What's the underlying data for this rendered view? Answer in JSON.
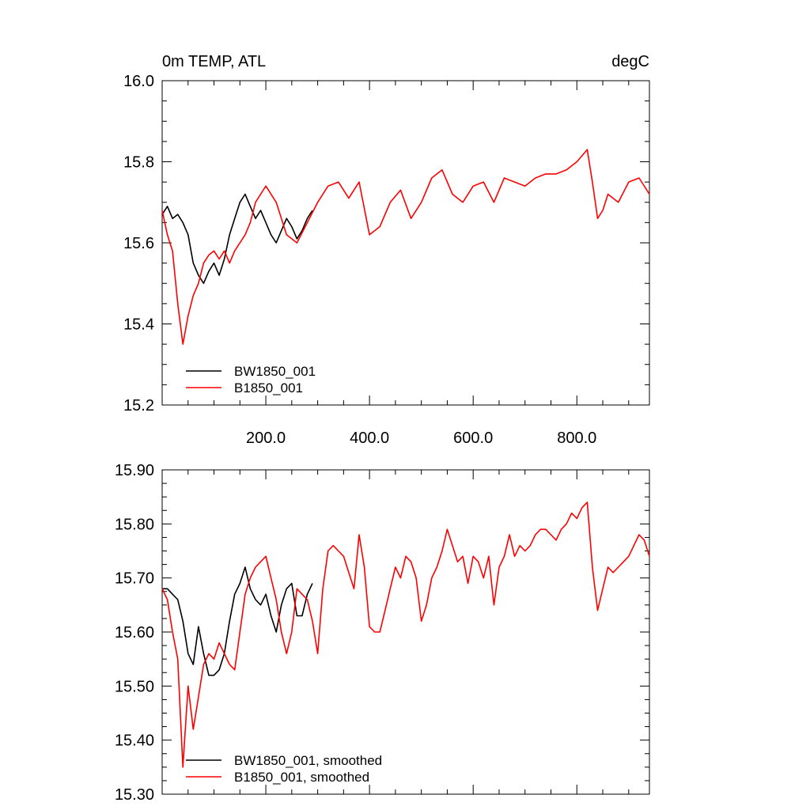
{
  "chart_data": [
    {
      "type": "line",
      "title": "0m TEMP, ATL",
      "units": "degC",
      "xlim": [
        0,
        940
      ],
      "ylim": [
        15.2,
        16.0
      ],
      "x_ticks": [
        200,
        400,
        600,
        800
      ],
      "x_tick_labels": [
        "200.0",
        "400.0",
        "600.0",
        "800.0"
      ],
      "y_ticks": [
        15.2,
        15.4,
        15.6,
        15.8,
        16.0
      ],
      "y_tick_labels": [
        "15.2",
        "15.4",
        "15.6",
        "15.8",
        "16.0"
      ],
      "legend_position": "bottom-left",
      "series": [
        {
          "name": "BW1850_001",
          "color": "#000000",
          "x": [
            0,
            10,
            20,
            30,
            40,
            50,
            60,
            70,
            80,
            90,
            100,
            110,
            120,
            130,
            140,
            150,
            160,
            170,
            180,
            190,
            200,
            210,
            220,
            230,
            240,
            250,
            260,
            270,
            280,
            290
          ],
          "values": [
            15.67,
            15.69,
            15.66,
            15.67,
            15.65,
            15.62,
            15.55,
            15.52,
            15.5,
            15.53,
            15.55,
            15.52,
            15.56,
            15.62,
            15.66,
            15.7,
            15.72,
            15.69,
            15.66,
            15.68,
            15.65,
            15.62,
            15.6,
            15.63,
            15.66,
            15.64,
            15.61,
            15.63,
            15.66,
            15.68
          ]
        },
        {
          "name": "B1850_001",
          "color": "#ff0000",
          "x": [
            0,
            10,
            20,
            30,
            40,
            50,
            60,
            70,
            80,
            90,
            100,
            110,
            120,
            130,
            140,
            150,
            160,
            170,
            180,
            190,
            200,
            220,
            240,
            260,
            280,
            300,
            320,
            340,
            360,
            380,
            400,
            420,
            440,
            460,
            480,
            500,
            520,
            540,
            560,
            580,
            600,
            620,
            640,
            660,
            680,
            700,
            720,
            740,
            760,
            780,
            800,
            820,
            830,
            840,
            850,
            860,
            880,
            900,
            920,
            940
          ],
          "values": [
            15.68,
            15.62,
            15.58,
            15.45,
            15.35,
            15.42,
            15.47,
            15.5,
            15.55,
            15.57,
            15.58,
            15.56,
            15.58,
            15.55,
            15.58,
            15.6,
            15.62,
            15.65,
            15.7,
            15.72,
            15.74,
            15.7,
            15.62,
            15.6,
            15.65,
            15.7,
            15.74,
            15.75,
            15.71,
            15.75,
            15.62,
            15.64,
            15.7,
            15.73,
            15.66,
            15.7,
            15.76,
            15.78,
            15.72,
            15.7,
            15.74,
            15.75,
            15.7,
            15.76,
            15.75,
            15.74,
            15.76,
            15.77,
            15.77,
            15.78,
            15.8,
            15.83,
            15.75,
            15.66,
            15.68,
            15.72,
            15.7,
            15.75,
            15.76,
            15.72
          ]
        }
      ]
    },
    {
      "type": "line",
      "xlim": [
        0,
        940
      ],
      "ylim": [
        15.3,
        15.9
      ],
      "y_ticks": [
        15.3,
        15.4,
        15.5,
        15.6,
        15.7,
        15.8,
        15.9
      ],
      "y_tick_labels": [
        "15.30",
        "15.40",
        "15.50",
        "15.60",
        "15.70",
        "15.80",
        "15.90"
      ],
      "legend_position": "bottom-left",
      "series": [
        {
          "name": "BW1850_001, smoothed",
          "color": "#000000",
          "x": [
            0,
            10,
            20,
            30,
            40,
            50,
            60,
            70,
            80,
            90,
            100,
            110,
            120,
            130,
            140,
            150,
            160,
            170,
            180,
            190,
            200,
            210,
            220,
            230,
            240,
            250,
            260,
            270,
            280,
            290
          ],
          "values": [
            15.68,
            15.68,
            15.67,
            15.66,
            15.62,
            15.56,
            15.54,
            15.61,
            15.56,
            15.52,
            15.52,
            15.53,
            15.56,
            15.62,
            15.67,
            15.69,
            15.72,
            15.68,
            15.66,
            15.65,
            15.67,
            15.63,
            15.6,
            15.65,
            15.68,
            15.69,
            15.63,
            15.63,
            15.67,
            15.69
          ]
        },
        {
          "name": "B1850_001, smoothed",
          "color": "#ff0000",
          "x": [
            0,
            10,
            20,
            30,
            40,
            50,
            60,
            70,
            80,
            90,
            100,
            110,
            120,
            130,
            140,
            150,
            160,
            170,
            180,
            190,
            200,
            210,
            220,
            230,
            240,
            250,
            260,
            270,
            280,
            290,
            300,
            310,
            320,
            330,
            340,
            350,
            360,
            370,
            380,
            390,
            400,
            410,
            420,
            430,
            440,
            450,
            460,
            470,
            480,
            490,
            500,
            510,
            520,
            530,
            540,
            550,
            560,
            570,
            580,
            590,
            600,
            610,
            620,
            630,
            640,
            650,
            660,
            670,
            680,
            690,
            700,
            710,
            720,
            730,
            740,
            750,
            760,
            770,
            780,
            790,
            800,
            810,
            820,
            830,
            840,
            850,
            860,
            870,
            880,
            890,
            900,
            910,
            920,
            930,
            940
          ],
          "values": [
            15.68,
            15.66,
            15.6,
            15.55,
            15.35,
            15.5,
            15.42,
            15.48,
            15.54,
            15.56,
            15.55,
            15.58,
            15.56,
            15.54,
            15.53,
            15.6,
            15.67,
            15.7,
            15.72,
            15.73,
            15.74,
            15.7,
            15.66,
            15.6,
            15.56,
            15.6,
            15.68,
            15.67,
            15.66,
            15.62,
            15.56,
            15.68,
            15.75,
            15.76,
            15.75,
            15.74,
            15.71,
            15.68,
            15.78,
            15.72,
            15.61,
            15.6,
            15.6,
            15.64,
            15.68,
            15.72,
            15.7,
            15.74,
            15.73,
            15.7,
            15.62,
            15.65,
            15.7,
            15.72,
            15.75,
            15.79,
            15.76,
            15.73,
            15.74,
            15.69,
            15.74,
            15.73,
            15.7,
            15.74,
            15.65,
            15.72,
            15.74,
            15.78,
            15.74,
            15.76,
            15.75,
            15.76,
            15.78,
            15.79,
            15.79,
            15.78,
            15.77,
            15.79,
            15.8,
            15.82,
            15.81,
            15.83,
            15.84,
            15.72,
            15.64,
            15.68,
            15.72,
            15.71,
            15.72,
            15.73,
            15.74,
            15.76,
            15.78,
            15.77,
            15.74
          ]
        }
      ]
    }
  ]
}
